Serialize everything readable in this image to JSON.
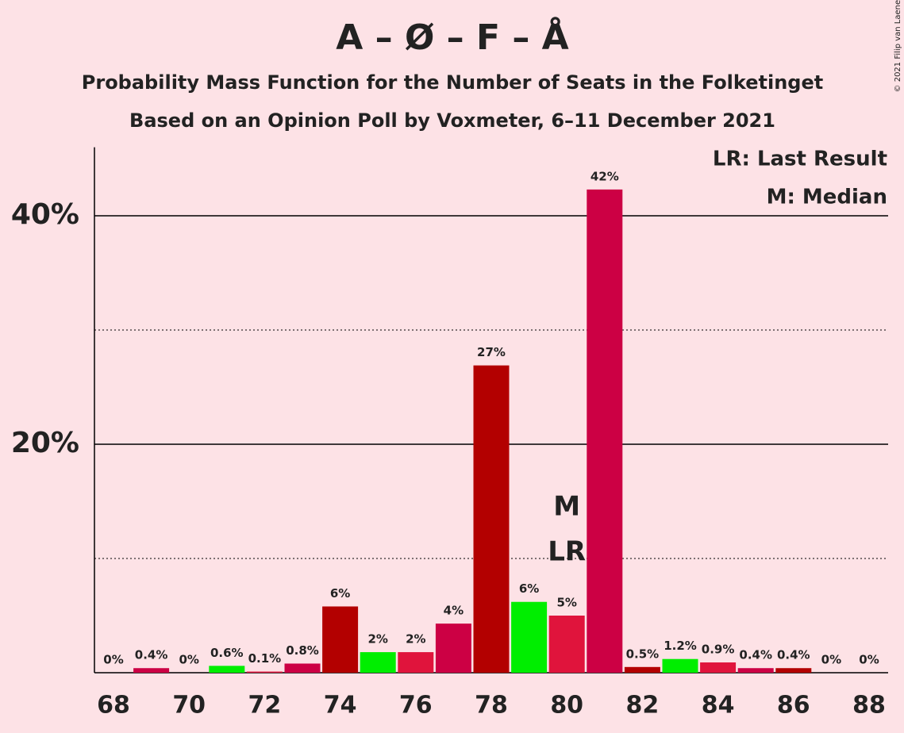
{
  "chart_data": {
    "type": "bar",
    "title": "A – Ø – F – Å",
    "subtitle": "Probability Mass Function for the Number of Seats in the Folketinget",
    "subtitle2": "Based on an Opinion Poll by Voxmeter, 6–11 December 2021",
    "copyright": "© 2021 Filip van Laenen",
    "legend": [
      "LR: Last Result",
      "M: Median"
    ],
    "categories": [
      68,
      null,
      70,
      null,
      72,
      null,
      74,
      null,
      76,
      null,
      78,
      null,
      80,
      null,
      82,
      null,
      84,
      null,
      86,
      null,
      88
    ],
    "values": [
      0,
      0.4,
      0,
      0.6,
      0.1,
      0.8,
      5.8,
      1.8,
      1.8,
      4.3,
      26.9,
      6.2,
      5.0,
      42.3,
      0.5,
      1.2,
      0.9,
      0.4,
      0.4,
      0,
      0
    ],
    "value_labels": [
      "0%",
      "0.4%",
      "0%",
      "0.6%",
      "0.1%",
      "0.8%",
      "6%",
      "2%",
      "2%",
      "4%",
      "27%",
      "6%",
      "5%",
      "42%",
      "0.5%",
      "1.2%",
      "0.9%",
      "0.4%",
      "0.4%",
      "0%",
      "0%"
    ],
    "colors": [
      "#e0143c",
      "#cc0044",
      "#b30000",
      "#00ee00",
      "#e0143c",
      "#cc0044",
      "#b30000",
      "#00ee00",
      "#e0143c",
      "#cc0044",
      "#b30000",
      "#00ee00",
      "#e0143c",
      "#cc0044",
      "#b30000",
      "#00ee00",
      "#e0143c",
      "#cc0044",
      "#b30000",
      "#00ee00",
      "#e0143c"
    ],
    "annotations": [
      {
        "text": "M",
        "category": 80
      },
      {
        "text": "LR",
        "category": 80
      }
    ],
    "ylim": [
      0,
      46
    ],
    "yticks": [
      {
        "value": 20,
        "label": "20%"
      },
      {
        "value": 40,
        "label": "40%"
      }
    ],
    "minor_yticks": [
      10,
      30
    ]
  }
}
